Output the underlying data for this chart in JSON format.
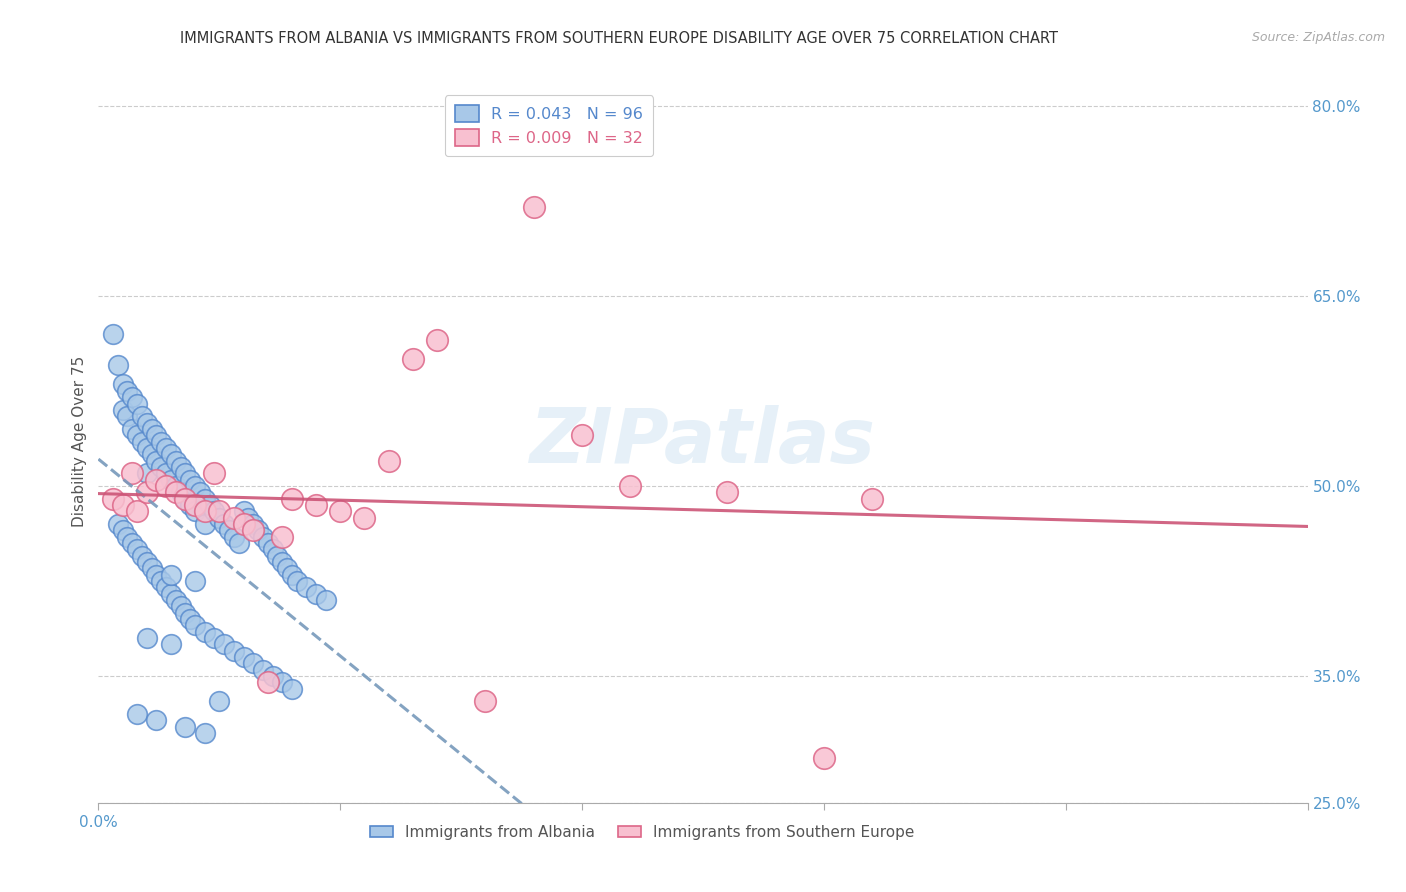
{
  "title": "IMMIGRANTS FROM ALBANIA VS IMMIGRANTS FROM SOUTHERN EUROPE DISABILITY AGE OVER 75 CORRELATION CHART",
  "source": "Source: ZipAtlas.com",
  "ylabel": "Disability Age Over 75",
  "xlim": [
    0.0,
    0.25
  ],
  "ylim": [
    0.25,
    0.82
  ],
  "yticks_right": [
    0.25,
    0.35,
    0.5,
    0.65,
    0.8
  ],
  "yticklabels_right": [
    "25.0%",
    "35.0%",
    "50.0%",
    "65.0%",
    "80.0%"
  ],
  "grid_color": "#cccccc",
  "background_color": "#ffffff",
  "watermark": "ZIPatlas",
  "series1": {
    "label": "Immigrants from Albania",
    "R": 0.043,
    "N": 96,
    "color": "#a8c8e8",
    "edge_color": "#5588cc",
    "trendline_color": "#7799bb",
    "trendline_style": "--",
    "x": [
      0.003,
      0.004,
      0.005,
      0.005,
      0.006,
      0.006,
      0.007,
      0.007,
      0.008,
      0.008,
      0.009,
      0.009,
      0.01,
      0.01,
      0.01,
      0.011,
      0.011,
      0.012,
      0.012,
      0.013,
      0.013,
      0.014,
      0.014,
      0.015,
      0.015,
      0.016,
      0.016,
      0.017,
      0.017,
      0.018,
      0.018,
      0.019,
      0.019,
      0.02,
      0.02,
      0.021,
      0.022,
      0.022,
      0.023,
      0.024,
      0.025,
      0.026,
      0.027,
      0.028,
      0.029,
      0.03,
      0.031,
      0.032,
      0.033,
      0.034,
      0.035,
      0.036,
      0.037,
      0.038,
      0.039,
      0.04,
      0.041,
      0.043,
      0.045,
      0.047,
      0.004,
      0.005,
      0.006,
      0.007,
      0.008,
      0.009,
      0.01,
      0.011,
      0.012,
      0.013,
      0.014,
      0.015,
      0.016,
      0.017,
      0.018,
      0.019,
      0.02,
      0.022,
      0.024,
      0.026,
      0.028,
      0.03,
      0.032,
      0.034,
      0.036,
      0.038,
      0.04,
      0.015,
      0.02,
      0.025,
      0.01,
      0.015,
      0.008,
      0.012,
      0.018,
      0.022
    ],
    "y": [
      0.62,
      0.595,
      0.58,
      0.56,
      0.575,
      0.555,
      0.57,
      0.545,
      0.565,
      0.54,
      0.555,
      0.535,
      0.55,
      0.53,
      0.51,
      0.545,
      0.525,
      0.54,
      0.52,
      0.535,
      0.515,
      0.53,
      0.51,
      0.525,
      0.505,
      0.52,
      0.5,
      0.515,
      0.495,
      0.51,
      0.49,
      0.505,
      0.485,
      0.5,
      0.48,
      0.495,
      0.49,
      0.47,
      0.485,
      0.48,
      0.475,
      0.47,
      0.465,
      0.46,
      0.455,
      0.48,
      0.475,
      0.47,
      0.465,
      0.46,
      0.455,
      0.45,
      0.445,
      0.44,
      0.435,
      0.43,
      0.425,
      0.42,
      0.415,
      0.41,
      0.47,
      0.465,
      0.46,
      0.455,
      0.45,
      0.445,
      0.44,
      0.435,
      0.43,
      0.425,
      0.42,
      0.415,
      0.41,
      0.405,
      0.4,
      0.395,
      0.39,
      0.385,
      0.38,
      0.375,
      0.37,
      0.365,
      0.36,
      0.355,
      0.35,
      0.345,
      0.34,
      0.43,
      0.425,
      0.33,
      0.38,
      0.375,
      0.32,
      0.315,
      0.31,
      0.305
    ]
  },
  "series2": {
    "label": "Immigrants from Southern Europe",
    "R": 0.009,
    "N": 32,
    "color": "#f8c0d0",
    "edge_color": "#dd6688",
    "trendline_color": "#cc5577",
    "trendline_style": "-",
    "x": [
      0.003,
      0.005,
      0.007,
      0.008,
      0.01,
      0.012,
      0.014,
      0.016,
      0.018,
      0.02,
      0.022,
      0.024,
      0.025,
      0.028,
      0.03,
      0.032,
      0.035,
      0.038,
      0.04,
      0.045,
      0.05,
      0.055,
      0.06,
      0.065,
      0.07,
      0.08,
      0.09,
      0.1,
      0.11,
      0.13,
      0.15,
      0.16
    ],
    "y": [
      0.49,
      0.485,
      0.51,
      0.48,
      0.495,
      0.505,
      0.5,
      0.495,
      0.49,
      0.485,
      0.48,
      0.51,
      0.48,
      0.475,
      0.47,
      0.465,
      0.345,
      0.46,
      0.49,
      0.485,
      0.48,
      0.475,
      0.52,
      0.6,
      0.615,
      0.33,
      0.72,
      0.54,
      0.5,
      0.495,
      0.285,
      0.49
    ],
    "trendline_x": [
      0.0,
      0.25
    ],
    "trendline_y": [
      0.488,
      0.492
    ]
  }
}
